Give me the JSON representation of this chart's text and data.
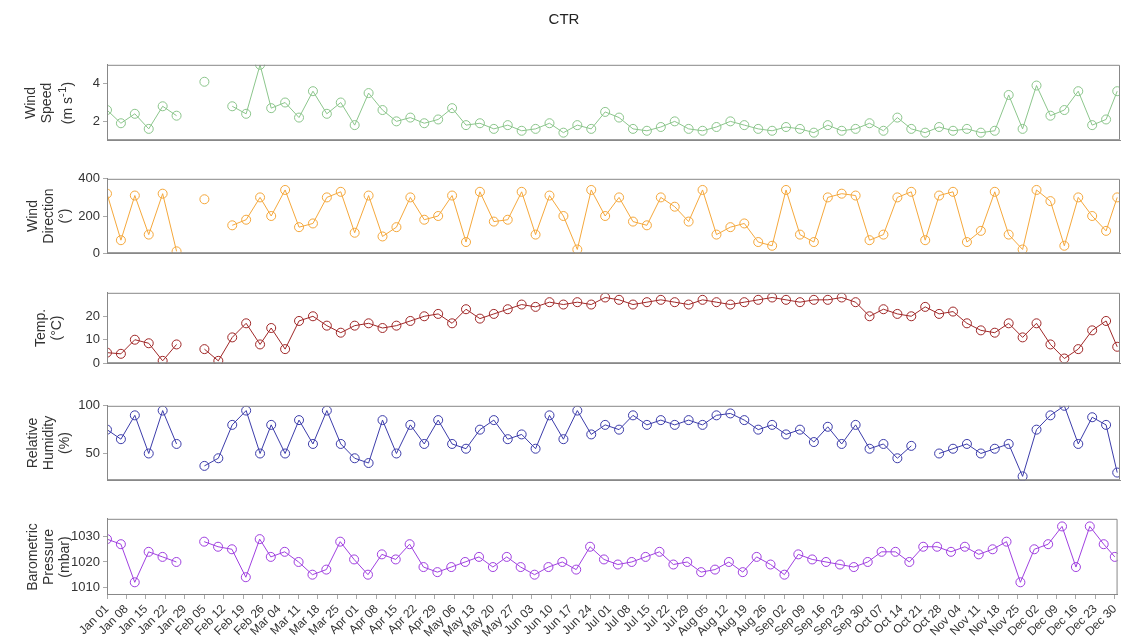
{
  "chart_data": [
    {
      "type": "line",
      "title": "CTR",
      "ylabel": "Wind\nSpeed\n(m s$^{-1}$)",
      "color": "#8cc68c",
      "marker": "circle",
      "line_style": "solid",
      "grid": false,
      "legend": false,
      "tick_labels": "y",
      "x": [
        "--01-01",
        "--01-06",
        "--01-11",
        "--01-16",
        "--01-21",
        "--01-26",
        "--01-31",
        "--02-05",
        "--02-10",
        "--02-15",
        "--02-20",
        "--02-25",
        "--03-01",
        "--03-06",
        "--03-11",
        "--03-16",
        "--03-21",
        "--03-26",
        "--03-31",
        "--04-05",
        "--04-10",
        "--04-15",
        "--04-20",
        "--04-25",
        "--04-30",
        "--05-05",
        "--05-10",
        "--05-15",
        "--05-20",
        "--05-25",
        "--05-30",
        "--06-04",
        "--06-09",
        "--06-14",
        "--06-19",
        "--06-24",
        "--06-29",
        "--07-04",
        "--07-09",
        "--07-14",
        "--07-19",
        "--07-24",
        "--07-29",
        "--08-03",
        "--08-08",
        "--08-13",
        "--08-18",
        "--08-23",
        "--08-28",
        "--09-02",
        "--09-07",
        "--09-12",
        "--09-17",
        "--09-22",
        "--09-27",
        "--10-02",
        "--10-07",
        "--10-12",
        "--10-17",
        "--10-22",
        "--10-27",
        "--11-01",
        "--11-06",
        "--11-11",
        "--11-16",
        "--11-21",
        "--11-26",
        "--12-01",
        "--12-06",
        "--12-11",
        "--12-16",
        "--12-21",
        "--12-26",
        "--12-30"
      ],
      "values": [
        2.6,
        1.9,
        2.4,
        1.6,
        2.8,
        2.3,
        null,
        4.1,
        null,
        2.8,
        2.4,
        5.0,
        2.7,
        3.0,
        2.2,
        3.6,
        2.4,
        3.0,
        1.8,
        3.5,
        2.6,
        2.0,
        2.2,
        1.9,
        2.1,
        2.7,
        1.8,
        1.9,
        1.6,
        1.8,
        1.5,
        1.6,
        1.9,
        1.4,
        1.8,
        1.6,
        2.5,
        2.2,
        1.6,
        1.5,
        1.7,
        2.0,
        1.6,
        1.5,
        1.7,
        2.0,
        1.8,
        1.6,
        1.5,
        1.7,
        1.6,
        1.4,
        1.8,
        1.5,
        1.6,
        1.9,
        1.5,
        2.2,
        1.6,
        1.4,
        1.7,
        1.5,
        1.6,
        1.4,
        1.5,
        3.4,
        1.6,
        3.9,
        2.3,
        2.6,
        3.6,
        1.8,
        2.1,
        3.6
      ],
      "xlim": [
        "--01-01",
        "--12-31"
      ],
      "ylim": [
        1,
        5
      ],
      "yticks": [
        2,
        4
      ]
    },
    {
      "type": "line",
      "ylabel": "Wind\nDirection\n(°)",
      "color": "#f5a83c",
      "marker": "circle",
      "line_style": "solid",
      "grid": false,
      "legend": false,
      "tick_labels": "y",
      "x": [
        "--01-01",
        "--01-06",
        "--01-11",
        "--01-16",
        "--01-21",
        "--01-26",
        "--01-31",
        "--02-05",
        "--02-10",
        "--02-15",
        "--02-20",
        "--02-25",
        "--03-01",
        "--03-06",
        "--03-11",
        "--03-16",
        "--03-21",
        "--03-26",
        "--03-31",
        "--04-05",
        "--04-10",
        "--04-15",
        "--04-20",
        "--04-25",
        "--04-30",
        "--05-05",
        "--05-10",
        "--05-15",
        "--05-20",
        "--05-25",
        "--05-30",
        "--06-04",
        "--06-09",
        "--06-14",
        "--06-19",
        "--06-24",
        "--06-29",
        "--07-04",
        "--07-09",
        "--07-14",
        "--07-19",
        "--07-24",
        "--07-29",
        "--08-03",
        "--08-08",
        "--08-13",
        "--08-18",
        "--08-23",
        "--08-28",
        "--09-02",
        "--09-07",
        "--09-12",
        "--09-17",
        "--09-22",
        "--09-27",
        "--10-02",
        "--10-07",
        "--10-12",
        "--10-17",
        "--10-22",
        "--10-27",
        "--11-01",
        "--11-06",
        "--11-11",
        "--11-16",
        "--11-21",
        "--11-26",
        "--12-01",
        "--12-06",
        "--12-11",
        "--12-16",
        "--12-21",
        "--12-26",
        "--12-30"
      ],
      "values": [
        320,
        70,
        310,
        100,
        320,
        10,
        null,
        290,
        null,
        150,
        180,
        300,
        200,
        340,
        140,
        160,
        300,
        330,
        110,
        310,
        90,
        140,
        300,
        180,
        200,
        310,
        60,
        330,
        170,
        180,
        330,
        100,
        310,
        200,
        20,
        340,
        200,
        300,
        170,
        150,
        300,
        250,
        170,
        340,
        100,
        140,
        160,
        60,
        40,
        340,
        100,
        60,
        300,
        320,
        310,
        70,
        100,
        300,
        330,
        70,
        310,
        330,
        60,
        120,
        330,
        100,
        20,
        340,
        280,
        40,
        300,
        200,
        120,
        300
      ],
      "xlim": [
        "--01-01",
        "--12-31"
      ],
      "ylim": [
        0,
        400
      ],
      "yticks": [
        0,
        200,
        400
      ]
    },
    {
      "type": "line",
      "ylabel": "Temp.\n(°C)",
      "color": "#a02828",
      "marker": "circle",
      "line_style": "solid",
      "grid": false,
      "legend": false,
      "tick_labels": "y",
      "x": [
        "--01-01",
        "--01-06",
        "--01-11",
        "--01-16",
        "--01-21",
        "--01-26",
        "--01-31",
        "--02-05",
        "--02-10",
        "--02-15",
        "--02-20",
        "--02-25",
        "--03-01",
        "--03-06",
        "--03-11",
        "--03-16",
        "--03-21",
        "--03-26",
        "--03-31",
        "--04-05",
        "--04-10",
        "--04-15",
        "--04-20",
        "--04-25",
        "--04-30",
        "--05-05",
        "--05-10",
        "--05-15",
        "--05-20",
        "--05-25",
        "--05-30",
        "--06-04",
        "--06-09",
        "--06-14",
        "--06-19",
        "--06-24",
        "--06-29",
        "--07-04",
        "--07-09",
        "--07-14",
        "--07-19",
        "--07-24",
        "--07-29",
        "--08-03",
        "--08-08",
        "--08-13",
        "--08-18",
        "--08-23",
        "--08-28",
        "--09-02",
        "--09-07",
        "--09-12",
        "--09-17",
        "--09-22",
        "--09-27",
        "--10-02",
        "--10-07",
        "--10-12",
        "--10-17",
        "--10-22",
        "--10-27",
        "--11-01",
        "--11-06",
        "--11-11",
        "--11-16",
        "--11-21",
        "--11-26",
        "--12-01",
        "--12-06",
        "--12-11",
        "--12-16",
        "--12-21",
        "--12-26",
        "--12-30"
      ],
      "values": [
        4.5,
        4,
        10,
        8.5,
        1,
        8,
        null,
        6,
        1,
        11,
        17,
        8,
        15,
        6,
        18,
        20,
        16,
        13,
        16,
        17,
        15,
        16,
        18,
        20,
        21,
        17,
        23,
        19,
        21,
        23,
        25,
        24,
        26,
        25,
        26,
        25,
        28,
        27,
        25,
        26,
        27,
        26,
        25,
        27,
        26,
        25,
        26,
        27,
        28,
        27,
        26,
        27,
        27,
        28,
        26,
        20,
        23,
        21,
        20,
        24,
        21,
        22,
        17,
        14,
        13,
        17,
        11,
        17,
        8,
        2,
        6,
        14,
        18,
        7
      ],
      "xlim": [
        "--01-01",
        "--12-31"
      ],
      "ylim": [
        0,
        30
      ],
      "yticks": [
        0,
        10,
        20
      ]
    },
    {
      "type": "line",
      "ylabel": "Relative\nHumidity\n(%)",
      "color": "#3c3caa",
      "marker": "circle",
      "line_style": "solid",
      "grid": false,
      "legend": false,
      "tick_labels": "y",
      "x": [
        "--01-01",
        "--01-06",
        "--01-11",
        "--01-16",
        "--01-21",
        "--01-26",
        "--01-31",
        "--02-05",
        "--02-10",
        "--02-15",
        "--02-20",
        "--02-25",
        "--03-01",
        "--03-06",
        "--03-11",
        "--03-16",
        "--03-21",
        "--03-26",
        "--03-31",
        "--04-05",
        "--04-10",
        "--04-15",
        "--04-20",
        "--04-25",
        "--04-30",
        "--05-05",
        "--05-10",
        "--05-15",
        "--05-20",
        "--05-25",
        "--05-30",
        "--06-04",
        "--06-09",
        "--06-14",
        "--06-19",
        "--06-24",
        "--06-29",
        "--07-04",
        "--07-09",
        "--07-14",
        "--07-19",
        "--07-24",
        "--07-29",
        "--08-03",
        "--08-08",
        "--08-13",
        "--08-18",
        "--08-23",
        "--08-28",
        "--09-02",
        "--09-07",
        "--09-12",
        "--09-17",
        "--09-22",
        "--09-27",
        "--10-02",
        "--10-07",
        "--10-12",
        "--10-17",
        "--10-22",
        "--10-27",
        "--11-01",
        "--11-06",
        "--11-11",
        "--11-16",
        "--11-21",
        "--11-26",
        "--12-01",
        "--12-06",
        "--12-11",
        "--12-16",
        "--12-21",
        "--12-26",
        "--12-30"
      ],
      "values": [
        75,
        65,
        90,
        50,
        95,
        60,
        null,
        37,
        45,
        80,
        95,
        50,
        80,
        50,
        85,
        60,
        95,
        60,
        45,
        40,
        85,
        50,
        80,
        60,
        85,
        60,
        55,
        75,
        85,
        65,
        70,
        55,
        90,
        65,
        95,
        70,
        80,
        75,
        90,
        80,
        85,
        80,
        85,
        80,
        90,
        92,
        85,
        75,
        80,
        70,
        75,
        62,
        78,
        60,
        80,
        55,
        60,
        45,
        58,
        null,
        50,
        55,
        60,
        50,
        55,
        60,
        26,
        75,
        90,
        100,
        60,
        88,
        80,
        30
      ],
      "xlim": [
        "--01-01",
        "--12-31"
      ],
      "ylim": [
        22,
        100
      ],
      "yticks": [
        50,
        100
      ]
    },
    {
      "type": "line",
      "ylabel": "Barometric\nPressure\n(mbar)",
      "color": "#a040e0",
      "marker": "circle",
      "line_style": "solid",
      "grid": false,
      "legend": false,
      "x": [
        "--01-01",
        "--01-06",
        "--01-11",
        "--01-16",
        "--01-21",
        "--01-26",
        "--01-31",
        "--02-05",
        "--02-10",
        "--02-15",
        "--02-20",
        "--02-25",
        "--03-01",
        "--03-06",
        "--03-11",
        "--03-16",
        "--03-21",
        "--03-26",
        "--03-31",
        "--04-05",
        "--04-10",
        "--04-15",
        "--04-20",
        "--04-25",
        "--04-30",
        "--05-05",
        "--05-10",
        "--05-15",
        "--05-20",
        "--05-25",
        "--05-30",
        "--06-04",
        "--06-09",
        "--06-14",
        "--06-19",
        "--06-24",
        "--06-29",
        "--07-04",
        "--07-09",
        "--07-14",
        "--07-19",
        "--07-24",
        "--07-29",
        "--08-03",
        "--08-08",
        "--08-13",
        "--08-18",
        "--08-23",
        "--08-28",
        "--09-02",
        "--09-07",
        "--09-12",
        "--09-17",
        "--09-22",
        "--09-27",
        "--10-02",
        "--10-07",
        "--10-12",
        "--10-17",
        "--10-22",
        "--10-27",
        "--11-01",
        "--11-06",
        "--11-11",
        "--11-16",
        "--11-21",
        "--11-26",
        "--12-01",
        "--12-06",
        "--12-11",
        "--12-16",
        "--12-21",
        "--12-26",
        "--12-30"
      ],
      "values": [
        1029,
        1027,
        1012,
        1024,
        1022,
        1020,
        null,
        1028,
        1026,
        1025,
        1014,
        1029,
        1022,
        1024,
        1020,
        1015,
        1017,
        1028,
        1021,
        1015,
        1023,
        1021,
        1027,
        1018,
        1016,
        1018,
        1020,
        1022,
        1018,
        1022,
        1018,
        1015,
        1018,
        1020,
        1017,
        1026,
        1021,
        1019,
        1020,
        1022,
        1024,
        1019,
        1020,
        1016,
        1017,
        1020,
        1016,
        1022,
        1019,
        1015,
        1023,
        1021,
        1020,
        1019,
        1018,
        1020,
        1024,
        1024,
        1020,
        1026,
        1026,
        1024,
        1026,
        1023,
        1025,
        1028,
        1012,
        1025,
        1027,
        1034,
        1018,
        1034,
        1027,
        1022
      ],
      "xlim": [
        "--01-01",
        "--12-31"
      ],
      "ylim": [
        1007,
        1037
      ],
      "yticks": [
        1010,
        1020,
        1030
      ],
      "xticks": [
        {
          "value": "--01-01",
          "label": "Jan 01"
        },
        {
          "value": "--01-08",
          "label": "Jan 08"
        },
        {
          "value": "--01-15",
          "label": "Jan 15"
        },
        {
          "value": "--01-22",
          "label": "Jan 22"
        },
        {
          "value": "--01-29",
          "label": "Jan 29"
        },
        {
          "value": "--02-05",
          "label": "Feb 05"
        },
        {
          "value": "--02-12",
          "label": "Feb 12"
        },
        {
          "value": "--02-19",
          "label": "Feb 19"
        },
        {
          "value": "--02-26",
          "label": "Feb 26"
        },
        {
          "value": "--03-04",
          "label": "Mar 04"
        },
        {
          "value": "--03-11",
          "label": "Mar 11"
        },
        {
          "value": "--03-18",
          "label": "Mar 18"
        },
        {
          "value": "--03-25",
          "label": "Mar 25"
        },
        {
          "value": "--04-01",
          "label": "Apr 01"
        },
        {
          "value": "--04-08",
          "label": "Apr 08"
        },
        {
          "value": "--04-15",
          "label": "Apr 15"
        },
        {
          "value": "--04-22",
          "label": "Apr 22"
        },
        {
          "value": "--04-29",
          "label": "Apr 29"
        },
        {
          "value": "--05-06",
          "label": "May 06"
        },
        {
          "value": "--05-13",
          "label": "May 13"
        },
        {
          "value": "--05-20",
          "label": "May 20"
        },
        {
          "value": "--05-27",
          "label": "May 27"
        },
        {
          "value": "--06-03",
          "label": "Jun 03"
        },
        {
          "value": "--06-10",
          "label": "Jun 10"
        },
        {
          "value": "--06-17",
          "label": "Jun 17"
        },
        {
          "value": "--06-24",
          "label": "Jun 24"
        },
        {
          "value": "--07-01",
          "label": "Jul 01"
        },
        {
          "value": "--07-08",
          "label": "Jul 08"
        },
        {
          "value": "--07-15",
          "label": "Jul 15"
        },
        {
          "value": "--07-22",
          "label": "Jul 22"
        },
        {
          "value": "--07-29",
          "label": "Jul 29"
        },
        {
          "value": "--08-05",
          "label": "Aug 05"
        },
        {
          "value": "--08-12",
          "label": "Aug 12"
        },
        {
          "value": "--08-19",
          "label": "Aug 19"
        },
        {
          "value": "--08-26",
          "label": "Aug 26"
        },
        {
          "value": "--09-02",
          "label": "Sep 02"
        },
        {
          "value": "--09-09",
          "label": "Sep 09"
        },
        {
          "value": "--09-16",
          "label": "Sep 16"
        },
        {
          "value": "--09-23",
          "label": "Sep 23"
        },
        {
          "value": "--09-30",
          "label": "Sep 30"
        },
        {
          "value": "--10-07",
          "label": "Oct 07"
        },
        {
          "value": "--10-14",
          "label": "Oct 14"
        },
        {
          "value": "--10-21",
          "label": "Oct 21"
        },
        {
          "value": "--10-28",
          "label": "Oct 28"
        },
        {
          "value": "--11-04",
          "label": "Nov 04"
        },
        {
          "value": "--11-11",
          "label": "Nov 11"
        },
        {
          "value": "--11-18",
          "label": "Nov 18"
        },
        {
          "value": "--11-25",
          "label": "Nov 25"
        },
        {
          "value": "--12-02",
          "label": "Dec 02"
        },
        {
          "value": "--12-09",
          "label": "Dec 09"
        },
        {
          "value": "--12-16",
          "label": "Dec 16"
        },
        {
          "value": "--12-23",
          "label": "Dec 23"
        },
        {
          "value": "--12-30",
          "label": "Dec 30"
        }
      ]
    }
  ]
}
